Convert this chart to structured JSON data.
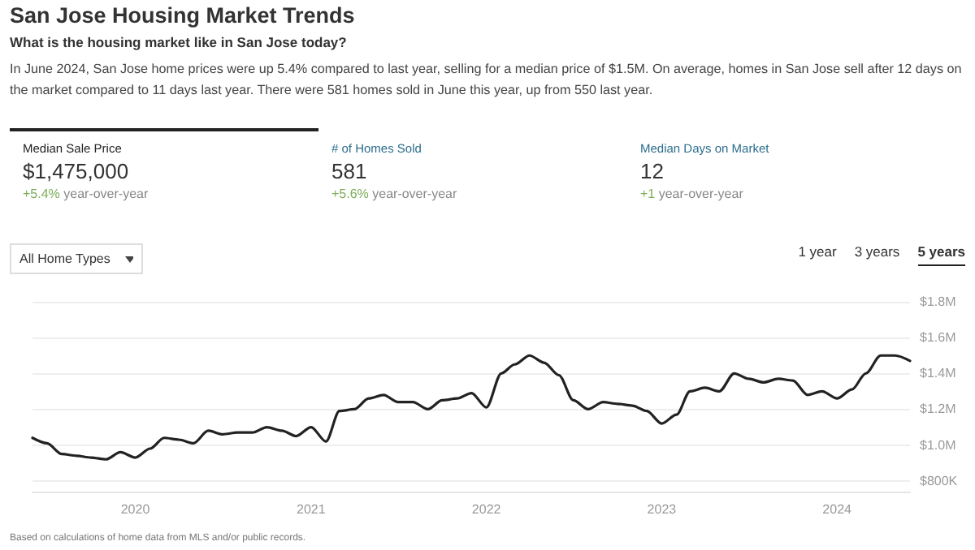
{
  "chart_data": {
    "type": "line",
    "title": "San Jose Housing Market Trends",
    "subtitle": "What is the housing market like in San Jose today?",
    "annotations": [
      "In June 2024, San Jose home prices were up 5.4% compared to last year, selling for a median price of $1.5M. On average, homes in San Jose sell after 12 days on the market compared to 11 days last year. There were 581 homes sold in June this year, up from 550 last year.",
      "Median Sale Price",
      "$1,475,000",
      "+5.4% year-over-year",
      "# of Homes Sold",
      "581",
      "+5.6% year-over-year",
      "Median Days on Market",
      "12",
      "+1 year-over-year",
      "All Home Types",
      "1 year",
      "3 years",
      "5 years",
      "Based on calculations of home data from MLS and/or public records."
    ],
    "x": [
      "2019-06",
      "2019-07",
      "2019-08",
      "2019-09",
      "2019-10",
      "2019-11",
      "2019-12",
      "2020-01",
      "2020-02",
      "2020-03",
      "2020-04",
      "2020-05",
      "2020-06",
      "2020-07",
      "2020-08",
      "2020-09",
      "2020-10",
      "2020-11",
      "2020-12",
      "2021-01",
      "2021-02",
      "2021-03",
      "2021-04",
      "2021-05",
      "2021-06",
      "2021-07",
      "2021-08",
      "2021-09",
      "2021-10",
      "2021-11",
      "2021-12",
      "2022-01",
      "2022-02",
      "2022-03",
      "2022-04",
      "2022-05",
      "2022-06",
      "2022-07",
      "2022-08",
      "2022-09",
      "2022-10",
      "2022-11",
      "2022-12",
      "2023-01",
      "2023-02",
      "2023-03",
      "2023-04",
      "2023-05",
      "2023-06",
      "2023-07",
      "2023-08",
      "2023-09",
      "2023-10",
      "2023-11",
      "2023-12",
      "2024-01",
      "2024-02",
      "2024-03",
      "2024-04",
      "2024-05",
      "2024-06"
    ],
    "values": [
      1040000,
      1010000,
      950000,
      940000,
      930000,
      920000,
      960000,
      930000,
      980000,
      1040000,
      1030000,
      1010000,
      1080000,
      1060000,
      1070000,
      1070000,
      1100000,
      1080000,
      1050000,
      1100000,
      1020000,
      1190000,
      1200000,
      1260000,
      1280000,
      1240000,
      1240000,
      1200000,
      1250000,
      1260000,
      1290000,
      1210000,
      1400000,
      1450000,
      1500000,
      1460000,
      1390000,
      1250000,
      1200000,
      1240000,
      1230000,
      1220000,
      1190000,
      1120000,
      1170000,
      1300000,
      1320000,
      1300000,
      1400000,
      1370000,
      1350000,
      1370000,
      1360000,
      1280000,
      1300000,
      1260000,
      1310000,
      1400000,
      1500000,
      1500000,
      1470000
    ],
    "color": "#222222",
    "xlim": [
      "2019-06",
      "2024-06"
    ],
    "xticks": [
      {
        "value": "2020-01",
        "label": "2020"
      },
      {
        "value": "2021-01",
        "label": "2021"
      },
      {
        "value": "2022-01",
        "label": "2022"
      },
      {
        "value": "2023-01",
        "label": "2023"
      },
      {
        "value": "2024-01",
        "label": "2024"
      }
    ],
    "ylim": [
      740000,
      1800000
    ],
    "yticks": [
      {
        "value": 800000,
        "label": "$800K"
      },
      {
        "value": 1000000,
        "label": "$1.0M"
      },
      {
        "value": 1200000,
        "label": "$1.2M"
      },
      {
        "value": 1400000,
        "label": "$1.4M"
      },
      {
        "value": 1600000,
        "label": "$1.6M"
      },
      {
        "value": 1800000,
        "label": "$1.8M"
      }
    ],
    "grid": "y",
    "marker": "none",
    "line_style": "solid"
  }
}
